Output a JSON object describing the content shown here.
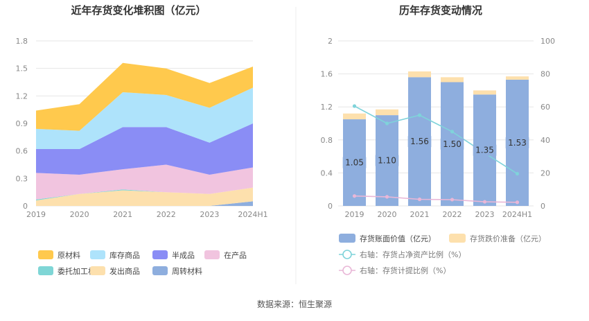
{
  "source_text": "数据来源：恒生聚源",
  "colors": {
    "raw": "#ffc94d",
    "stock": "#aee3fb",
    "semi": "#8a8df5",
    "wip": "#f1c4df",
    "consigned": "#7fd6d6",
    "shipped": "#fde0ad",
    "turnover": "#8eaede",
    "book": "#8eaede",
    "reserve": "#fde0ad",
    "ratio_line": "#7fd3da",
    "provision_line": "#e9b7d7"
  },
  "chart_data": [
    {
      "type": "area",
      "stacked": true,
      "title": "近年存货变化堆积图（亿元）",
      "categories": [
        "2019",
        "2020",
        "2021",
        "2022",
        "2023",
        "2024H1"
      ],
      "ylim": [
        0,
        1.8
      ],
      "yticks": [
        "0",
        "0.3",
        "0.6",
        "0.9",
        "1.2",
        "1.5",
        "1.8"
      ],
      "grid": true,
      "legend_position": "bottom",
      "series": [
        {
          "name": "周转材料",
          "color_key": "turnover",
          "values": [
            0.0,
            0.0,
            0.0,
            0.0,
            0.0,
            0.05
          ]
        },
        {
          "name": "发出商品",
          "color_key": "shipped",
          "values": [
            0.06,
            0.13,
            0.17,
            0.15,
            0.13,
            0.15
          ]
        },
        {
          "name": "委托加工材料",
          "color_key": "consigned",
          "values": [
            0.01,
            0.0,
            0.01,
            0.0,
            0.0,
            0.0
          ]
        },
        {
          "name": "在产品",
          "color_key": "wip",
          "values": [
            0.29,
            0.21,
            0.22,
            0.3,
            0.21,
            0.22
          ]
        },
        {
          "name": "半成品",
          "color_key": "semi",
          "values": [
            0.26,
            0.28,
            0.46,
            0.41,
            0.35,
            0.48
          ]
        },
        {
          "name": "库存商品",
          "color_key": "stock",
          "values": [
            0.22,
            0.2,
            0.38,
            0.35,
            0.38,
            0.39
          ]
        },
        {
          "name": "原材料",
          "color_key": "raw",
          "values": [
            0.2,
            0.29,
            0.32,
            0.29,
            0.27,
            0.23
          ]
        }
      ],
      "legend_order": [
        "原材料",
        "库存商品",
        "半成品",
        "在产品",
        "委托加工材料",
        "发出商品",
        "周转材料"
      ]
    },
    {
      "type": "bar",
      "stacked": true,
      "dual_axis": true,
      "title": "历年存货变动情况",
      "categories": [
        "2019",
        "2020",
        "2021",
        "2022",
        "2023",
        "2024H1"
      ],
      "ylim": [
        0,
        2
      ],
      "yticks": [
        "0",
        "0.4",
        "0.8",
        "1.2",
        "1.6",
        "2"
      ],
      "y2lim": [
        0,
        100
      ],
      "y2ticks": [
        "0",
        "20",
        "40",
        "60",
        "80",
        "100"
      ],
      "legend_position": "bottom",
      "series": [
        {
          "name": "存货账面价值（亿元）",
          "type": "bar",
          "color_key": "book",
          "values": [
            1.05,
            1.1,
            1.56,
            1.5,
            1.35,
            1.53
          ],
          "labels": [
            "1.05",
            "1.10",
            "1.56",
            "1.50",
            "1.35",
            "1.53"
          ]
        },
        {
          "name": "存货跌价准备（亿元）",
          "type": "bar",
          "color_key": "reserve",
          "values": [
            0.07,
            0.07,
            0.07,
            0.06,
            0.05,
            0.04
          ]
        },
        {
          "name": "右轴：存货占净资产比例（%）",
          "type": "line",
          "axis": "right",
          "color_key": "ratio_line",
          "values": [
            60.5,
            50.0,
            55.0,
            45.0,
            32.0,
            19.5
          ]
        },
        {
          "name": "右轴：存货计提比例（%）",
          "type": "line",
          "axis": "right",
          "color_key": "provision_line",
          "values": [
            6.0,
            5.5,
            4.0,
            3.8,
            2.5,
            2.2
          ]
        }
      ]
    }
  ]
}
